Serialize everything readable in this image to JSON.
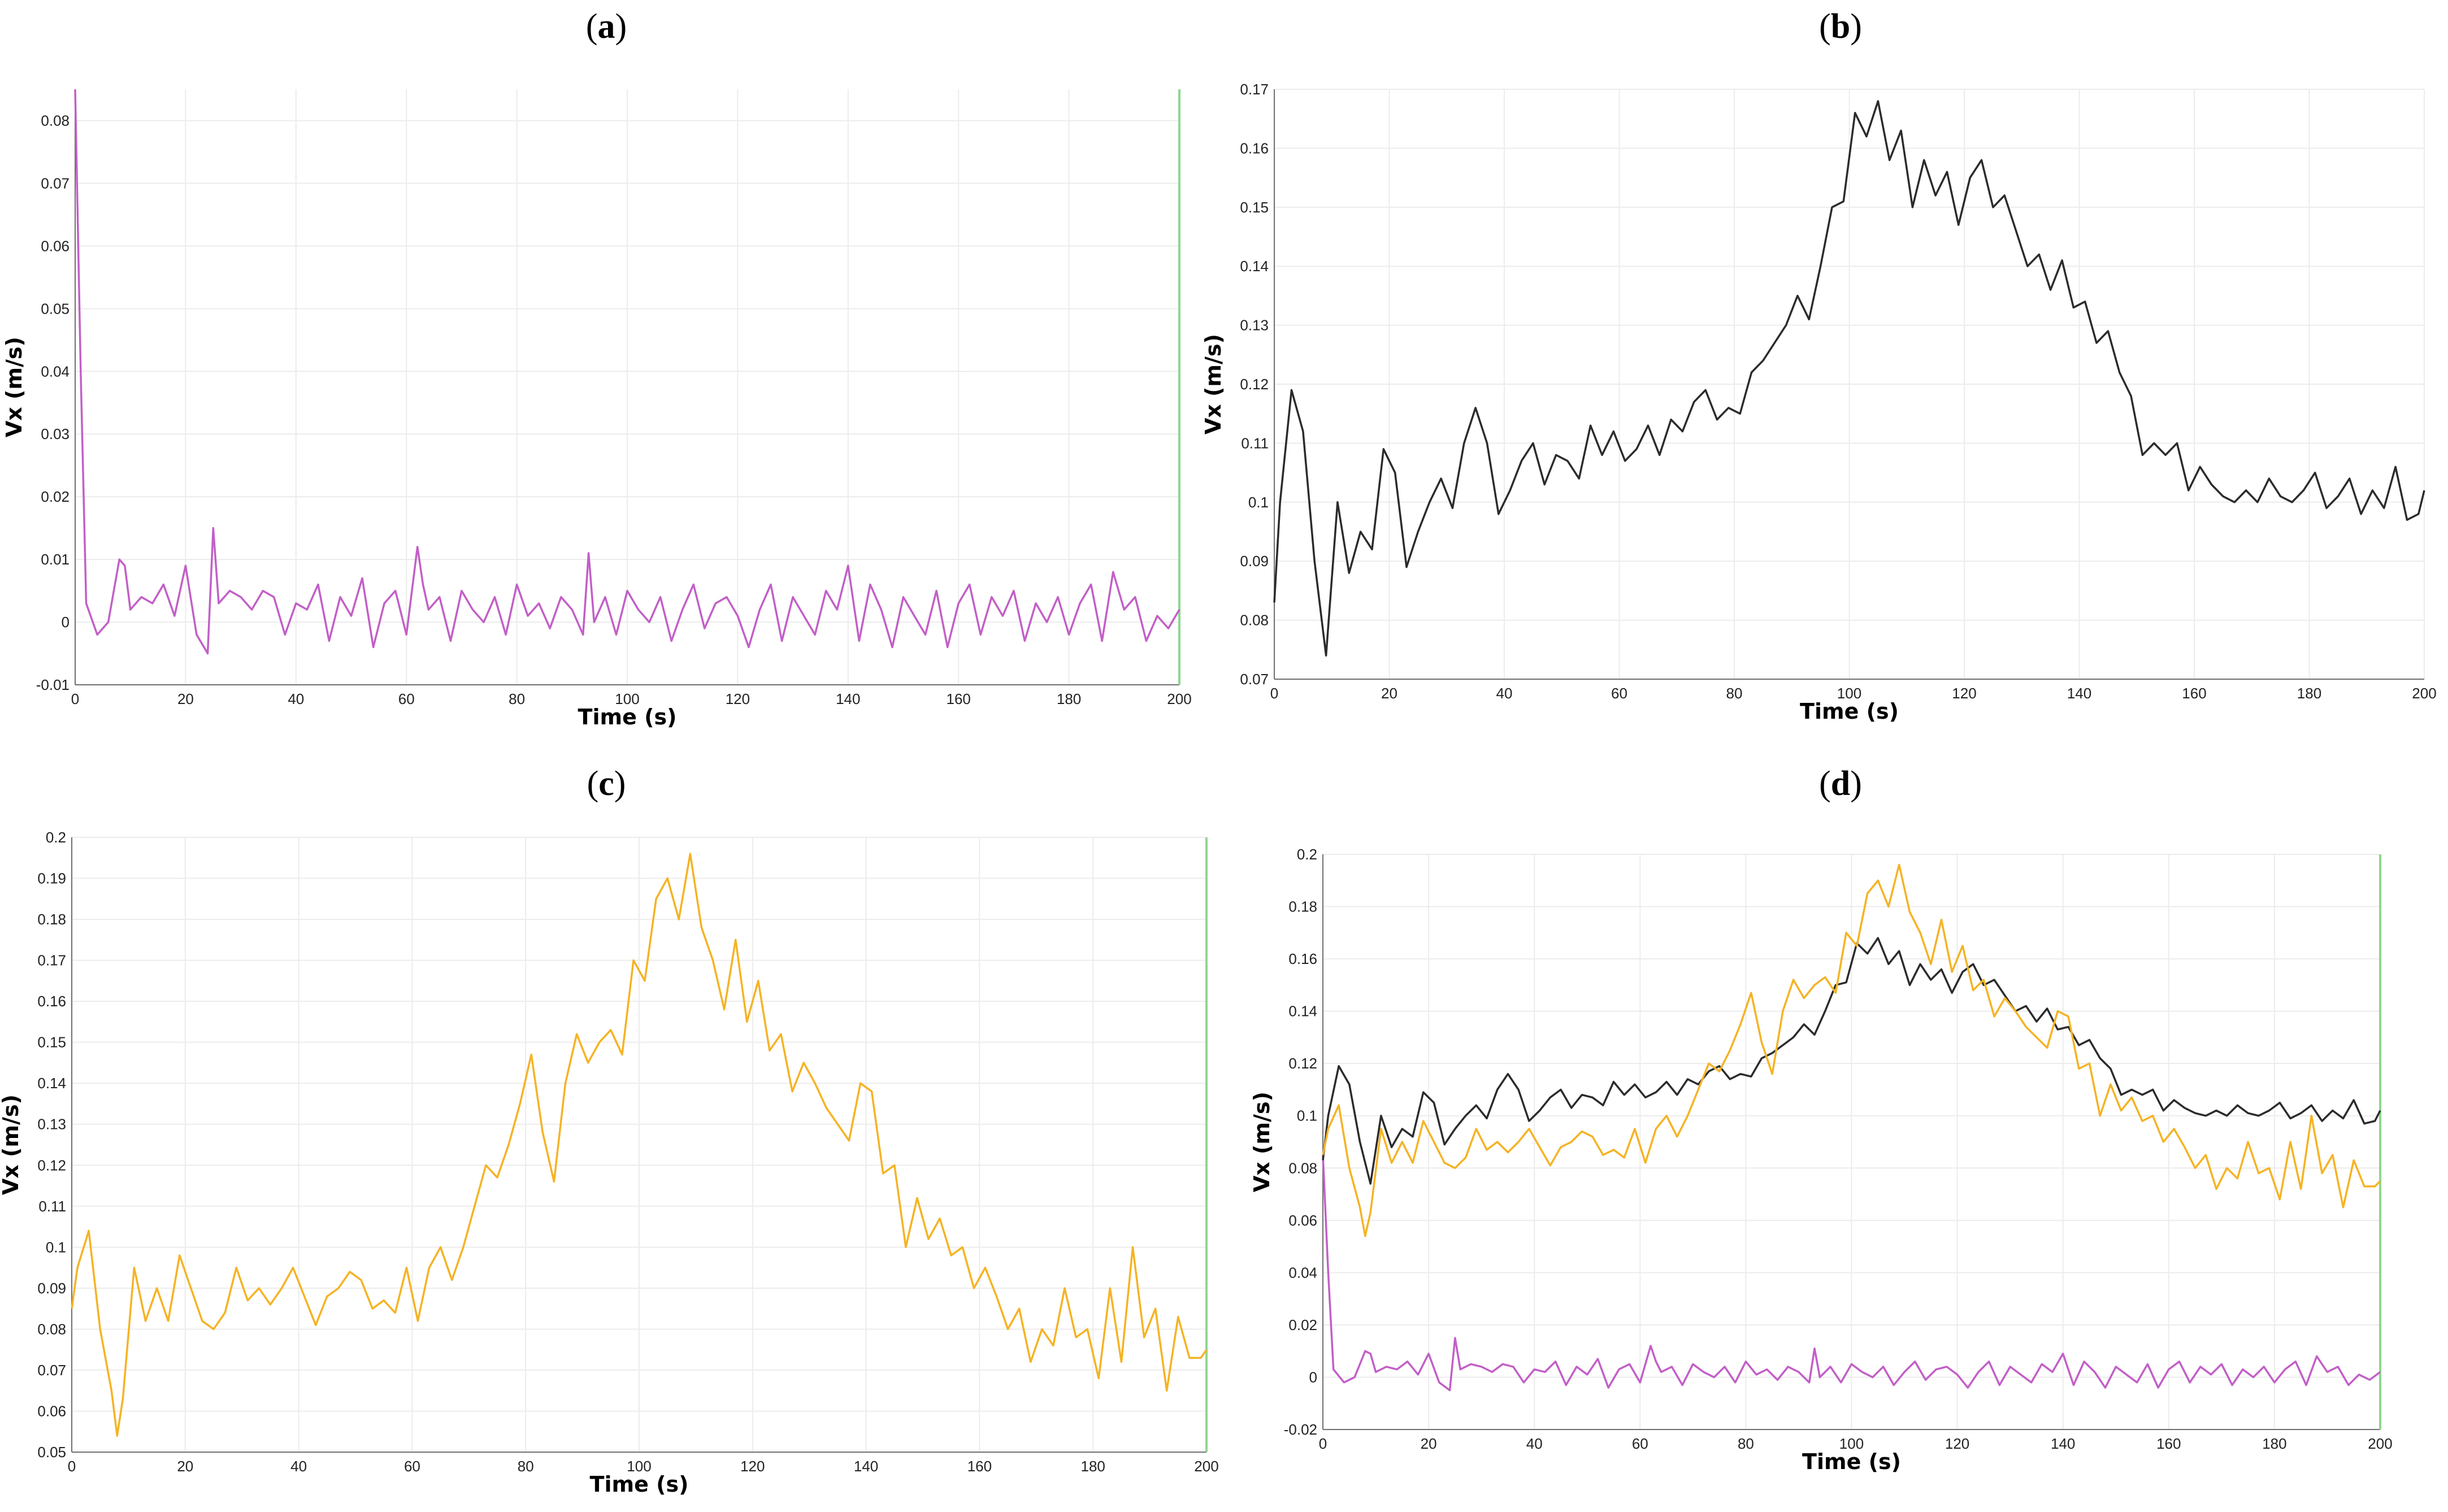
{
  "panels": [
    {
      "label": "a"
    },
    {
      "label": "b"
    },
    {
      "label": "c"
    },
    {
      "label": "d"
    }
  ],
  "chart_data": [
    {
      "type": "line",
      "panel": "a",
      "xlabel": "Time (s)",
      "ylabel": "Vx (m/s)",
      "xlim": [
        0,
        200
      ],
      "ylim": [
        -0.01,
        0.085
      ],
      "xticks": [
        0,
        20,
        40,
        60,
        80,
        100,
        120,
        140,
        160,
        180,
        200
      ],
      "yticks": [
        -0.01,
        0,
        0.01,
        0.02,
        0.03,
        0.04,
        0.05,
        0.06,
        0.07,
        0.08
      ],
      "grid": true,
      "marker_line_x": 200,
      "marker_line_color": "#8fd68f",
      "series": [
        {
          "color": "#c25fc7",
          "x": [
            0,
            1,
            2,
            4,
            6,
            8,
            9,
            10,
            12,
            14,
            16,
            18,
            20,
            22,
            24,
            25,
            26,
            28,
            30,
            32,
            34,
            36,
            38,
            40,
            42,
            44,
            46,
            48,
            50,
            52,
            54,
            56,
            58,
            60,
            62,
            63,
            64,
            66,
            68,
            70,
            72,
            74,
            76,
            78,
            80,
            82,
            84,
            86,
            88,
            90,
            92,
            93,
            94,
            96,
            98,
            100,
            102,
            104,
            106,
            108,
            110,
            112,
            114,
            116,
            118,
            120,
            122,
            124,
            126,
            128,
            130,
            132,
            134,
            136,
            138,
            140,
            142,
            144,
            146,
            148,
            150,
            152,
            154,
            156,
            158,
            160,
            162,
            164,
            166,
            168,
            170,
            172,
            174,
            176,
            178,
            180,
            182,
            184,
            186,
            188,
            190,
            192,
            194,
            196,
            198,
            200
          ],
          "y": [
            0.085,
            0.04,
            0.003,
            -0.002,
            0.0,
            0.01,
            0.009,
            0.002,
            0.004,
            0.003,
            0.006,
            0.001,
            0.009,
            -0.002,
            -0.005,
            0.015,
            0.003,
            0.005,
            0.004,
            0.002,
            0.005,
            0.004,
            -0.002,
            0.003,
            0.002,
            0.006,
            -0.003,
            0.004,
            0.001,
            0.007,
            -0.004,
            0.003,
            0.005,
            -0.002,
            0.012,
            0.006,
            0.002,
            0.004,
            -0.003,
            0.005,
            0.002,
            0.0,
            0.004,
            -0.002,
            0.006,
            0.001,
            0.003,
            -0.001,
            0.004,
            0.002,
            -0.002,
            0.011,
            0.0,
            0.004,
            -0.002,
            0.005,
            0.002,
            0.0,
            0.004,
            -0.003,
            0.002,
            0.006,
            -0.001,
            0.003,
            0.004,
            0.001,
            -0.004,
            0.002,
            0.006,
            -0.003,
            0.004,
            0.001,
            -0.002,
            0.005,
            0.002,
            0.009,
            -0.003,
            0.006,
            0.002,
            -0.004,
            0.004,
            0.001,
            -0.002,
            0.005,
            -0.004,
            0.003,
            0.006,
            -0.002,
            0.004,
            0.001,
            0.005,
            -0.003,
            0.003,
            0.0,
            0.004,
            -0.002,
            0.003,
            0.006,
            -0.003,
            0.008,
            0.002,
            0.004,
            -0.003,
            0.001,
            -0.001,
            0.002
          ]
        }
      ]
    },
    {
      "type": "line",
      "panel": "b",
      "xlabel": "Time (s)",
      "ylabel": "Vx (m/s)",
      "xlim": [
        0,
        200
      ],
      "ylim": [
        0.07,
        0.17
      ],
      "xticks": [
        0,
        20,
        40,
        60,
        80,
        100,
        120,
        140,
        160,
        180,
        200
      ],
      "yticks": [
        0.07,
        0.08,
        0.09,
        0.1,
        0.11,
        0.12,
        0.13,
        0.14,
        0.15,
        0.16,
        0.17
      ],
      "grid": true,
      "marker_line_x": null,
      "series": [
        {
          "color": "#2b2b2b",
          "x": [
            0,
            1,
            3,
            5,
            7,
            9,
            11,
            13,
            15,
            17,
            19,
            21,
            23,
            25,
            27,
            29,
            31,
            33,
            35,
            37,
            39,
            41,
            43,
            45,
            47,
            49,
            51,
            53,
            55,
            57,
            59,
            61,
            63,
            65,
            67,
            69,
            71,
            73,
            75,
            77,
            79,
            81,
            83,
            85,
            87,
            89,
            91,
            93,
            95,
            97,
            99,
            101,
            103,
            104,
            105,
            107,
            109,
            111,
            113,
            115,
            117,
            119,
            121,
            123,
            125,
            127,
            129,
            131,
            133,
            135,
            137,
            139,
            141,
            143,
            145,
            147,
            149,
            151,
            153,
            155,
            157,
            159,
            161,
            163,
            165,
            167,
            169,
            171,
            173,
            175,
            177,
            179,
            181,
            183,
            185,
            187,
            189,
            191,
            193,
            195,
            197,
            199,
            200
          ],
          "y": [
            0.083,
            0.1,
            0.119,
            0.112,
            0.09,
            0.074,
            0.1,
            0.088,
            0.095,
            0.092,
            0.109,
            0.105,
            0.089,
            0.095,
            0.1,
            0.104,
            0.099,
            0.11,
            0.116,
            0.11,
            0.098,
            0.102,
            0.107,
            0.11,
            0.103,
            0.108,
            0.107,
            0.104,
            0.113,
            0.108,
            0.112,
            0.107,
            0.109,
            0.113,
            0.108,
            0.114,
            0.112,
            0.117,
            0.119,
            0.114,
            0.116,
            0.115,
            0.122,
            0.124,
            0.127,
            0.13,
            0.135,
            0.131,
            0.14,
            0.15,
            0.151,
            0.166,
            0.162,
            0.165,
            0.168,
            0.158,
            0.163,
            0.15,
            0.158,
            0.152,
            0.156,
            0.147,
            0.155,
            0.158,
            0.15,
            0.152,
            0.146,
            0.14,
            0.142,
            0.136,
            0.141,
            0.133,
            0.134,
            0.127,
            0.129,
            0.122,
            0.118,
            0.108,
            0.11,
            0.108,
            0.11,
            0.102,
            0.106,
            0.103,
            0.101,
            0.1,
            0.102,
            0.1,
            0.104,
            0.101,
            0.1,
            0.102,
            0.105,
            0.099,
            0.101,
            0.104,
            0.098,
            0.102,
            0.099,
            0.106,
            0.097,
            0.098,
            0.102
          ]
        }
      ]
    },
    {
      "type": "line",
      "panel": "c",
      "xlabel": "Time (s)",
      "ylabel": "Vx (m/s)",
      "xlim": [
        0,
        200
      ],
      "ylim": [
        0.05,
        0.2
      ],
      "xticks": [
        0,
        20,
        40,
        60,
        80,
        100,
        120,
        140,
        160,
        180,
        200
      ],
      "yticks": [
        0.05,
        0.06,
        0.07,
        0.08,
        0.09,
        0.1,
        0.11,
        0.12,
        0.13,
        0.14,
        0.15,
        0.16,
        0.17,
        0.18,
        0.19,
        0.2
      ],
      "grid": true,
      "marker_line_x": 200,
      "marker_line_color": "#8fd68f",
      "series": [
        {
          "color": "#f5b324",
          "x": [
            0,
            1,
            3,
            5,
            7,
            8,
            9,
            11,
            13,
            15,
            17,
            19,
            21,
            23,
            25,
            27,
            29,
            31,
            33,
            35,
            37,
            39,
            41,
            43,
            45,
            47,
            49,
            51,
            53,
            55,
            57,
            59,
            61,
            63,
            65,
            67,
            69,
            71,
            73,
            75,
            77,
            79,
            81,
            83,
            85,
            87,
            89,
            91,
            93,
            95,
            97,
            99,
            101,
            103,
            105,
            107,
            109,
            111,
            113,
            115,
            117,
            119,
            121,
            123,
            125,
            127,
            129,
            131,
            133,
            135,
            137,
            139,
            141,
            143,
            145,
            147,
            149,
            151,
            153,
            155,
            157,
            159,
            161,
            163,
            165,
            167,
            169,
            171,
            173,
            175,
            177,
            179,
            181,
            183,
            185,
            187,
            189,
            191,
            193,
            195,
            197,
            199,
            200
          ],
          "y": [
            0.085,
            0.095,
            0.104,
            0.08,
            0.065,
            0.054,
            0.063,
            0.095,
            0.082,
            0.09,
            0.082,
            0.098,
            0.09,
            0.082,
            0.08,
            0.084,
            0.095,
            0.087,
            0.09,
            0.086,
            0.09,
            0.095,
            0.088,
            0.081,
            0.088,
            0.09,
            0.094,
            0.092,
            0.085,
            0.087,
            0.084,
            0.095,
            0.082,
            0.095,
            0.1,
            0.092,
            0.1,
            0.11,
            0.12,
            0.117,
            0.125,
            0.135,
            0.147,
            0.128,
            0.116,
            0.14,
            0.152,
            0.145,
            0.15,
            0.153,
            0.147,
            0.17,
            0.165,
            0.185,
            0.19,
            0.18,
            0.196,
            0.178,
            0.17,
            0.158,
            0.175,
            0.155,
            0.165,
            0.148,
            0.152,
            0.138,
            0.145,
            0.14,
            0.134,
            0.13,
            0.126,
            0.14,
            0.138,
            0.118,
            0.12,
            0.1,
            0.112,
            0.102,
            0.107,
            0.098,
            0.1,
            0.09,
            0.095,
            0.088,
            0.08,
            0.085,
            0.072,
            0.08,
            0.076,
            0.09,
            0.078,
            0.08,
            0.068,
            0.09,
            0.072,
            0.1,
            0.078,
            0.085,
            0.065,
            0.083,
            0.073,
            0.073,
            0.075
          ]
        }
      ]
    },
    {
      "type": "line",
      "panel": "d",
      "xlabel": "Time (s)",
      "ylabel": "Vx (m/s)",
      "xlim": [
        0,
        200
      ],
      "ylim": [
        -0.02,
        0.2
      ],
      "xticks": [
        0,
        20,
        40,
        60,
        80,
        100,
        120,
        140,
        160,
        180,
        200
      ],
      "yticks": [
        -0.02,
        0,
        0.02,
        0.04,
        0.06,
        0.08,
        0.1,
        0.12,
        0.14,
        0.16,
        0.18,
        0.2
      ],
      "grid": true,
      "marker_line_x": 200,
      "marker_line_color": "#8fd68f",
      "series": [
        {
          "color": "#c25fc7",
          "ref": 0
        },
        {
          "color": "#2b2b2b",
          "ref": 1
        },
        {
          "color": "#f5b324",
          "ref": 2
        }
      ]
    }
  ]
}
